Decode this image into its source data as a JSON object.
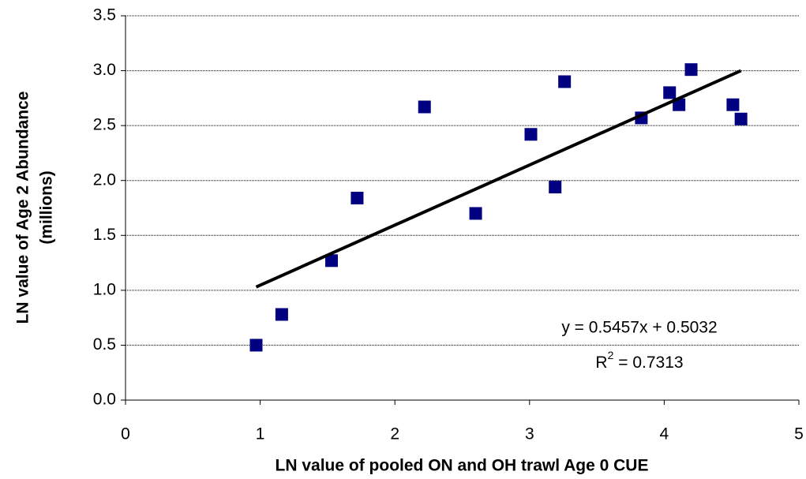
{
  "chart_data": {
    "type": "scatter",
    "x_label": "LN value of pooled ON and OH trawl Age 0 CUE",
    "y_label": [
      "LN value of Age 2 Abundance",
      "(millions)"
    ],
    "series": [
      {
        "color": "#000080",
        "x": [
          0.97,
          1.16,
          1.53,
          1.72,
          2.22,
          2.6,
          3.01,
          3.19,
          3.26,
          3.83,
          4.04,
          4.11,
          4.2,
          4.51,
          4.57
        ],
        "values": [
          0.5,
          0.78,
          1.27,
          1.84,
          2.67,
          1.7,
          2.42,
          1.94,
          2.9,
          2.57,
          2.8,
          2.69,
          3.01,
          2.69,
          2.56
        ]
      }
    ],
    "trendline": {
      "color": "#000000",
      "x": [
        0.97,
        4.57
      ],
      "values": [
        1.03,
        3.0
      ]
    },
    "equation": "y = 0.5457x + 0.5032",
    "r_squared": [
      "R",
      "2",
      " = 0.7313"
    ],
    "xlim": [
      0,
      5
    ],
    "xticks": [
      0,
      1,
      2,
      3,
      4,
      5
    ],
    "ylim": [
      0,
      3.5
    ],
    "yticks": [
      {
        "value": 0,
        "label": "0.0"
      },
      {
        "value": 0.5,
        "label": "0.5"
      },
      {
        "value": 1,
        "label": "1.0"
      },
      {
        "value": 1.5,
        "label": "1.5"
      },
      {
        "value": 2,
        "label": "2.0"
      },
      {
        "value": 2.5,
        "label": "2.5"
      },
      {
        "value": 3,
        "label": "3.0"
      },
      {
        "value": 3.5,
        "label": "3.5"
      }
    ],
    "grid": true
  }
}
